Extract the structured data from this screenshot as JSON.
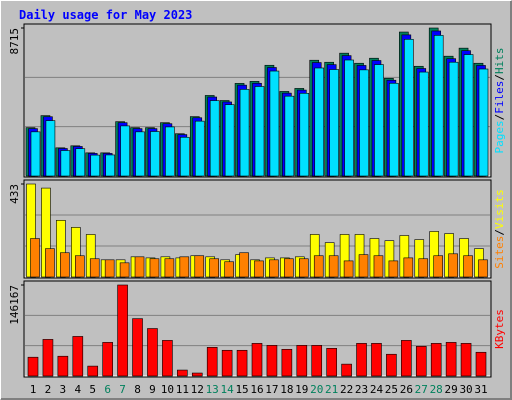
{
  "chart_data": [
    {
      "type": "bar",
      "title": "Daily usage for May 2023",
      "ylim": [
        0,
        8715
      ],
      "yticks": [
        8715
      ],
      "legend_separator": "/",
      "series": [
        {
          "name": "Hits",
          "color": "#00805c",
          "values": [
            2846,
            3557,
            1660,
            1779,
            1364,
            1364,
            3201,
            2846,
            2846,
            3142,
            2490,
            3498,
            4743,
            4446,
            5454,
            5573,
            6521,
            4980,
            5158,
            6818,
            6699,
            7233,
            6640,
            6936,
            5751,
            8478,
            6462,
            8715,
            7055,
            7529,
            6640
          ]
        },
        {
          "name": "Files",
          "color": "#0000ff",
          "values": [
            2790,
            3490,
            1620,
            1740,
            1330,
            1330,
            3140,
            2790,
            2790,
            3080,
            2440,
            3430,
            4650,
            4360,
            5350,
            5460,
            6390,
            4880,
            5060,
            6680,
            6560,
            7090,
            6510,
            6800,
            5640,
            8310,
            6330,
            8540,
            6910,
            7380,
            6510
          ]
        },
        {
          "name": "Pages",
          "color": "#00e0ff",
          "values": [
            2600,
            3260,
            1500,
            1610,
            1230,
            1240,
            2950,
            2600,
            2620,
            2890,
            2280,
            3230,
            4440,
            4200,
            5100,
            5270,
            6180,
            4700,
            4870,
            6360,
            6270,
            6830,
            6250,
            6560,
            5460,
            8050,
            6120,
            8280,
            6700,
            7150,
            6300
          ]
        }
      ]
    },
    {
      "type": "bar",
      "ylim": [
        0,
        433
      ],
      "yticks": [
        433
      ],
      "legend_separator": "/",
      "series": [
        {
          "name": "Visits",
          "color": "#ffff00",
          "values": [
            433,
            414,
            264,
            231,
            198,
            80,
            80,
            94,
            89,
            94,
            89,
            99,
            94,
            80,
            104,
            80,
            89,
            89,
            94,
            198,
            160,
            198,
            198,
            179,
            169,
            193,
            174,
            212,
            202,
            179,
            132
          ]
        },
        {
          "name": "Sites",
          "color": "#ff8000",
          "values": [
            179,
            132,
            113,
            99,
            85,
            80,
            66,
            94,
            85,
            85,
            94,
            99,
            85,
            71,
            113,
            75,
            80,
            85,
            85,
            99,
            99,
            75,
            104,
            99,
            75,
            89,
            85,
            99,
            108,
            99,
            80
          ]
        }
      ]
    },
    {
      "type": "bar",
      "ylim": [
        0,
        146167
      ],
      "yticks": [
        146167
      ],
      "categories": [
        "1",
        "2",
        "3",
        "4",
        "5",
        "6",
        "7",
        "8",
        "9",
        "10",
        "11",
        "12",
        "13",
        "14",
        "15",
        "16",
        "17",
        "18",
        "19",
        "20",
        "21",
        "22",
        "23",
        "24",
        "25",
        "26",
        "27",
        "28",
        "29",
        "30",
        "31"
      ],
      "category_colors": [
        "#000000",
        "#000000",
        "#000000",
        "#000000",
        "#000000",
        "#00805c",
        "#00805c",
        "#000000",
        "#000000",
        "#000000",
        "#000000",
        "#000000",
        "#00805c",
        "#00805c",
        "#000000",
        "#000000",
        "#000000",
        "#000000",
        "#000000",
        "#00805c",
        "#00805c",
        "#000000",
        "#000000",
        "#000000",
        "#000000",
        "#000000",
        "#00805c",
        "#00805c",
        "#000000",
        "#000000",
        "#000000"
      ],
      "series": [
        {
          "name": "KBytes",
          "color": "#ff0000",
          "values": [
            30187,
            58786,
            31776,
            63551,
            15888,
            54018,
            146167,
            92149,
            76261,
            57197,
            9533,
            4766,
            46075,
            41308,
            41308,
            52429,
            49252,
            42897,
            49252,
            49252,
            44486,
            19066,
            52429,
            52429,
            34953,
            57197,
            47663,
            52429,
            54018,
            52429,
            38131
          ]
        }
      ]
    }
  ]
}
